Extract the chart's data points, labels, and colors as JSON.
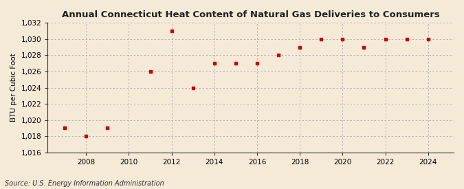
{
  "title": "Annual Connecticut Heat Content of Natural Gas Deliveries to Consumers",
  "ylabel": "BTU per Cubic Foot",
  "source": "Source: U.S. Energy Information Administration",
  "background_color": "#f5ead8",
  "plot_bg_color": "#f5ead8",
  "marker_color": "#cc0000",
  "grid_color": "#aaaaaa",
  "years": [
    2007,
    2008,
    2009,
    2011,
    2012,
    2013,
    2014,
    2015,
    2016,
    2017,
    2018,
    2019,
    2020,
    2021,
    2022,
    2023,
    2024
  ],
  "values": [
    1019.0,
    1018.0,
    1019.0,
    1026.0,
    1031.0,
    1024.0,
    1027.0,
    1027.0,
    1027.0,
    1028.0,
    1029.0,
    1030.0,
    1030.0,
    1029.0,
    1030.0,
    1030.0,
    1030.0
  ],
  "ylim": [
    1016,
    1032
  ],
  "yticks": [
    1016,
    1018,
    1020,
    1022,
    1024,
    1026,
    1028,
    1030,
    1032
  ],
  "xlim": [
    2006.2,
    2025.2
  ],
  "xticks": [
    2008,
    2010,
    2012,
    2014,
    2016,
    2018,
    2020,
    2022,
    2024
  ]
}
